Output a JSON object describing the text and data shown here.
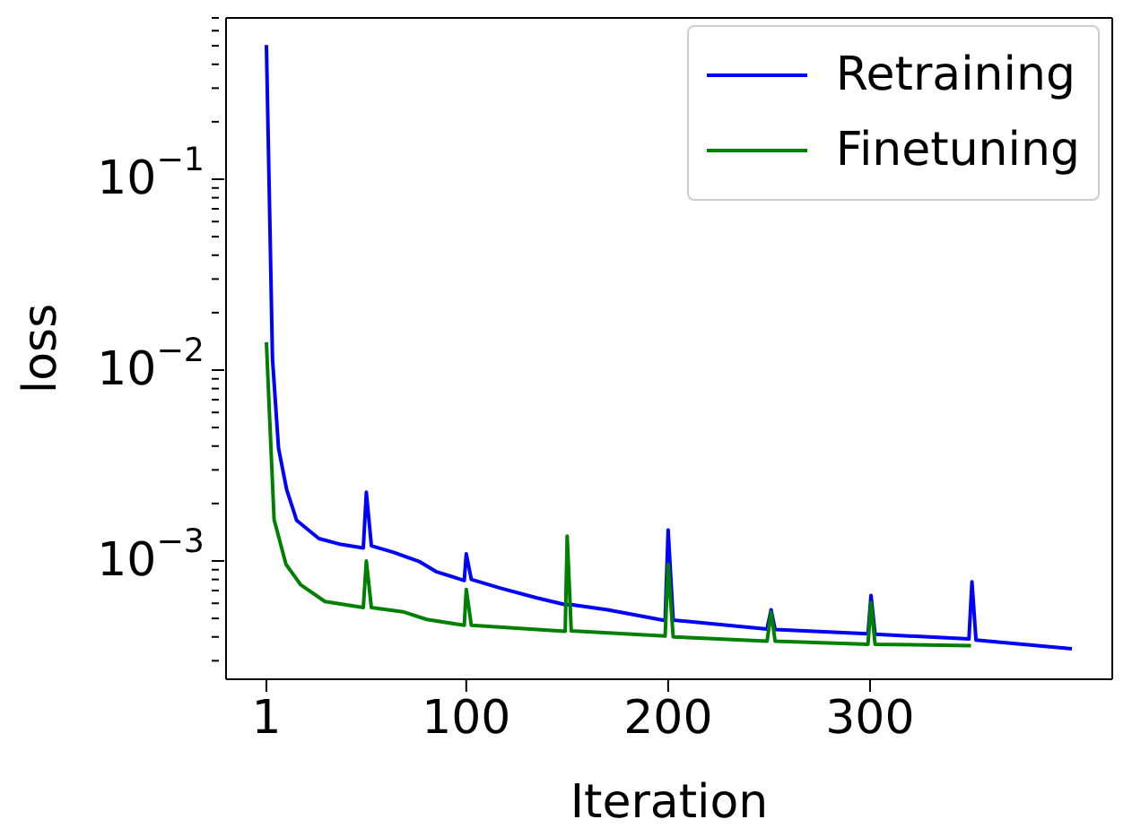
{
  "chart_data": {
    "type": "line",
    "xlabel": "Iteration",
    "ylabel": "loss",
    "log": "y",
    "legend": "top right",
    "xlim": [
      -19,
      420
    ],
    "xticks": [
      1,
      100,
      200,
      300
    ],
    "ylim": [
      0.00024,
      0.7
    ],
    "yticks": [
      {
        "value": 0.0003,
        "label": null
      },
      {
        "value": 0.0004,
        "label": null
      },
      {
        "value": 0.0005,
        "label": null
      },
      {
        "value": 0.0006,
        "label": null
      },
      {
        "value": 0.0007,
        "label": null
      },
      {
        "value": 0.0008,
        "label": null
      },
      {
        "value": 0.0009,
        "label": null
      },
      {
        "value": 0.001,
        "label": "10$^{−3}$"
      },
      {
        "value": 0.002,
        "label": null
      },
      {
        "value": 0.003,
        "label": null
      },
      {
        "value": 0.004,
        "label": null
      },
      {
        "value": 0.005,
        "label": null
      },
      {
        "value": 0.006,
        "label": null
      },
      {
        "value": 0.007,
        "label": null
      },
      {
        "value": 0.008,
        "label": null
      },
      {
        "value": 0.009,
        "label": null
      },
      {
        "value": 0.01,
        "label": "10$^{−2}$"
      },
      {
        "value": 0.02,
        "label": null
      },
      {
        "value": 0.03,
        "label": null
      },
      {
        "value": 0.04,
        "label": null
      },
      {
        "value": 0.05,
        "label": null
      },
      {
        "value": 0.06,
        "label": null
      },
      {
        "value": 0.07,
        "label": null
      },
      {
        "value": 0.08,
        "label": null
      },
      {
        "value": 0.09,
        "label": null
      },
      {
        "value": 0.1,
        "label": "10$^{−1}$"
      },
      {
        "value": 0.2,
        "label": null
      },
      {
        "value": 0.3,
        "label": null
      },
      {
        "value": 0.4,
        "label": null
      },
      {
        "value": 0.5,
        "label": null
      },
      {
        "value": 0.6,
        "label": null
      },
      {
        "value": 0.7,
        "label": null
      }
    ],
    "series": [
      {
        "name": "Retraining",
        "color": "#0000ff",
        "x": [
          1,
          4,
          7,
          11,
          16,
          27,
          38,
          49,
          50.5,
          53,
          64,
          77,
          85,
          99,
          100,
          102.5,
          117,
          135,
          149,
          150,
          152,
          170,
          198.5,
          200,
          202.5,
          249,
          251,
          253,
          299,
          300.5,
          302.5,
          349,
          350.5,
          352.5,
          400
        ],
        "values": [
          0.505,
          0.0115,
          0.0039,
          0.00237,
          0.00163,
          0.00131,
          0.00122,
          0.00117,
          0.00229,
          0.0012,
          0.00111,
          0.00099,
          0.00088,
          0.00079,
          0.00109,
          0.0008,
          0.00072,
          0.00064,
          0.00059,
          null,
          0.00059,
          0.000555,
          0.000487,
          0.00145,
          0.00049,
          0.00044,
          0.000555,
          0.000437,
          0.000415,
          0.00066,
          0.000413,
          0.00039,
          0.000778,
          0.000385,
          0.000347
        ]
      },
      {
        "name": "Finetuning",
        "color": "#008000",
        "x": [
          1,
          2.6,
          4.8,
          10.7,
          18,
          30,
          49,
          50.5,
          53,
          68.6,
          80.4,
          99,
          100,
          102.5,
          149,
          150,
          152,
          198.5,
          200,
          202.5,
          249,
          251,
          253,
          299,
          300.5,
          302.5,
          350
        ],
        "values": [
          0.014,
          0.0056,
          0.00165,
          0.00096,
          0.00075,
          0.000613,
          0.00057,
          0.001,
          0.00057,
          0.000542,
          0.000494,
          0.00046,
          0.00071,
          0.00046,
          0.000428,
          0.00135,
          0.00043,
          0.000404,
          0.00096,
          0.0004,
          0.00038,
          0.00054,
          0.00038,
          0.000366,
          0.000605,
          0.000366,
          0.00036
        ]
      }
    ]
  }
}
